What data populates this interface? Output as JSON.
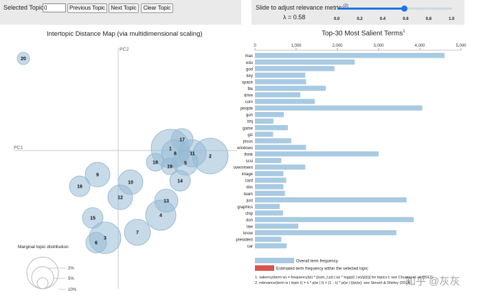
{
  "controls": {
    "selected_topic_label": "Selected Topic:",
    "selected_topic_value": "0",
    "prev_label": "Previous Topic",
    "next_label": "Next Topic",
    "clear_label": "Clear Topic",
    "slider_label": "Slide to adjust relevance metric:",
    "slider_note": "(2)",
    "lambda_text": "λ = 0.58",
    "lambda_value": 0.58,
    "slider_ticks": [
      "0.0",
      "0.2",
      "0.4",
      "0.6",
      "0.8",
      "1.0"
    ],
    "accent_color": "#1a73e8"
  },
  "left_panel": {
    "title": "Intertopic Distance Map (via multidimensional scaling)",
    "axis_pc1": "PC1",
    "axis_pc2": "PC2",
    "marginal_title": "Marginal topic distribution",
    "marginal_labels": [
      "2%",
      "5%",
      "10%"
    ],
    "topics": [
      "20",
      "17",
      "1",
      "8",
      "11",
      "2",
      "18",
      "19",
      "5",
      "14",
      "9",
      "16",
      "10",
      "12",
      "13",
      "4",
      "15",
      "7",
      "3",
      "6"
    ]
  },
  "right_panel": {
    "title": "Top-30 Most Salient Terms",
    "title_sup": "1",
    "bar_color": "#a8cae3",
    "selected_color": "#d9534f",
    "legend_overall": "Overall term frequency",
    "legend_estimated": "Estimated term frequency within the selected topic",
    "footnote1": "1. saliency(term w) = frequency(w) * [sum_t p(t | w) * log(p(t | w)/p(t))] for topics t; see Chuang et. al (2012)",
    "footnote2": "2. relevance(term w | topic t) = λ * p(w | t) + (1 - λ) * p(w | t)/p(w); see Sievert & Shirley (2014)"
  },
  "chart_data": {
    "type": "bar",
    "orientation": "horizontal",
    "title": "Top-30 Most Salient Terms",
    "xlim": [
      0,
      5000
    ],
    "x_ticks": [
      "0",
      "1,000",
      "2,000",
      "3,000",
      "4,000",
      "5,000"
    ],
    "categories": [
      "max",
      "edu",
      "god",
      "key",
      "space",
      "file",
      "drive",
      "com",
      "people",
      "gun",
      "bhj",
      "game",
      "giz",
      "jesus",
      "windows",
      "think",
      "scsi",
      "government",
      "image",
      "card",
      "dos",
      "team",
      "just",
      "graphics",
      "chip",
      "don",
      "law",
      "know",
      "president",
      "car"
    ],
    "values": [
      4600,
      2420,
      1930,
      1220,
      1240,
      1720,
      1100,
      1450,
      4060,
      700,
      450,
      800,
      440,
      880,
      1240,
      3000,
      640,
      1220,
      690,
      760,
      690,
      730,
      3680,
      600,
      680,
      3850,
      1050,
      3430,
      640,
      770
    ]
  },
  "watermark": "知乎 @灰灰"
}
